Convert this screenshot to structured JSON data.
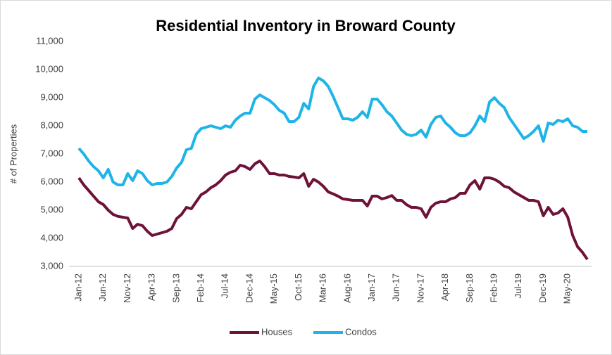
{
  "chart_data": {
    "type": "line",
    "title": "Residential Inventory in Broward County",
    "y_label": "# of Properties",
    "categories": [
      "Jan-12",
      null,
      null,
      null,
      null,
      "Jun-12",
      null,
      null,
      null,
      null,
      "Nov-12",
      null,
      null,
      null,
      null,
      "Apr-13",
      null,
      null,
      null,
      null,
      "Sep-13",
      null,
      null,
      null,
      null,
      "Feb-14",
      null,
      null,
      null,
      null,
      "Jul-14",
      null,
      null,
      null,
      null,
      "Dec-14",
      null,
      null,
      null,
      null,
      "May-15",
      null,
      null,
      null,
      null,
      "Oct-15",
      null,
      null,
      null,
      null,
      "Mar-16",
      null,
      null,
      null,
      null,
      "Aug-16",
      null,
      null,
      null,
      null,
      "Jan-17",
      null,
      null,
      null,
      null,
      "Jun-17",
      null,
      null,
      null,
      null,
      "Nov-17",
      null,
      null,
      null,
      null,
      "Apr-18",
      null,
      null,
      null,
      null,
      "Sep-18",
      null,
      null,
      null,
      null,
      "Feb-19",
      null,
      null,
      null,
      null,
      "Jul-19",
      null,
      null,
      null,
      null,
      "Dec-19",
      null,
      null,
      null,
      null,
      "May-20",
      null,
      null,
      null,
      null
    ],
    "series": [
      {
        "name": "Houses",
        "color": "#6e1238",
        "values": [
          6150,
          5900,
          5700,
          5500,
          5300,
          5200,
          5000,
          4850,
          4780,
          4750,
          4720,
          4350,
          4500,
          4450,
          4250,
          4100,
          4150,
          4200,
          4250,
          4350,
          4700,
          4850,
          5100,
          5050,
          5300,
          5550,
          5650,
          5800,
          5900,
          6050,
          6250,
          6350,
          6400,
          6600,
          6550,
          6450,
          6650,
          6750,
          6550,
          6300,
          6300,
          6250,
          6250,
          6200,
          6180,
          6150,
          6300,
          5850,
          6100,
          6000,
          5850,
          5650,
          5580,
          5500,
          5400,
          5380,
          5350,
          5350,
          5350,
          5150,
          5500,
          5500,
          5400,
          5450,
          5520,
          5350,
          5350,
          5200,
          5100,
          5100,
          5050,
          4750,
          5100,
          5250,
          5300,
          5300,
          5400,
          5450,
          5600,
          5600,
          5900,
          6050,
          5750,
          6150,
          6150,
          6100,
          6000,
          5850,
          5800,
          5650,
          5550,
          5450,
          5350,
          5350,
          5300,
          4800,
          5100,
          4850,
          4900,
          5050,
          4750,
          4100,
          3700,
          3500,
          3250
        ]
      },
      {
        "name": "Condos",
        "color": "#1fb4e8",
        "values": [
          7200,
          7000,
          6750,
          6550,
          6400,
          6150,
          6450,
          6000,
          5900,
          5900,
          6300,
          6050,
          6400,
          6300,
          6050,
          5900,
          5950,
          5950,
          6000,
          6200,
          6500,
          6700,
          7150,
          7200,
          7700,
          7900,
          7950,
          8000,
          7950,
          7900,
          8000,
          7950,
          8200,
          8350,
          8450,
          8450,
          8950,
          9100,
          9000,
          8900,
          8750,
          8550,
          8450,
          8150,
          8150,
          8300,
          8800,
          8600,
          9400,
          9700,
          9600,
          9400,
          9050,
          8650,
          8250,
          8250,
          8200,
          8300,
          8500,
          8300,
          8950,
          8950,
          8750,
          8500,
          8350,
          8100,
          7850,
          7700,
          7650,
          7700,
          7850,
          7600,
          8050,
          8300,
          8350,
          8100,
          7950,
          7750,
          7650,
          7650,
          7750,
          8000,
          8350,
          8150,
          8850,
          9000,
          8800,
          8650,
          8300,
          8050,
          7800,
          7550,
          7650,
          7800,
          8000,
          7450,
          8100,
          8050,
          8200,
          8150,
          8250,
          8000,
          7950,
          7800,
          7800
        ]
      }
    ],
    "ylim": [
      3000,
      11000
    ],
    "yticks": [
      {
        "value": 3000,
        "label": "3,000"
      },
      {
        "value": 4000,
        "label": "4,000"
      },
      {
        "value": 5000,
        "label": "5,000"
      },
      {
        "value": 6000,
        "label": "6,000"
      },
      {
        "value": 7000,
        "label": "7,000"
      },
      {
        "value": 8000,
        "label": "8,000"
      },
      {
        "value": 9000,
        "label": "9,000"
      },
      {
        "value": 10000,
        "label": "10,000"
      },
      {
        "value": 11000,
        "label": "11,000"
      }
    ],
    "legend": "bottom"
  }
}
